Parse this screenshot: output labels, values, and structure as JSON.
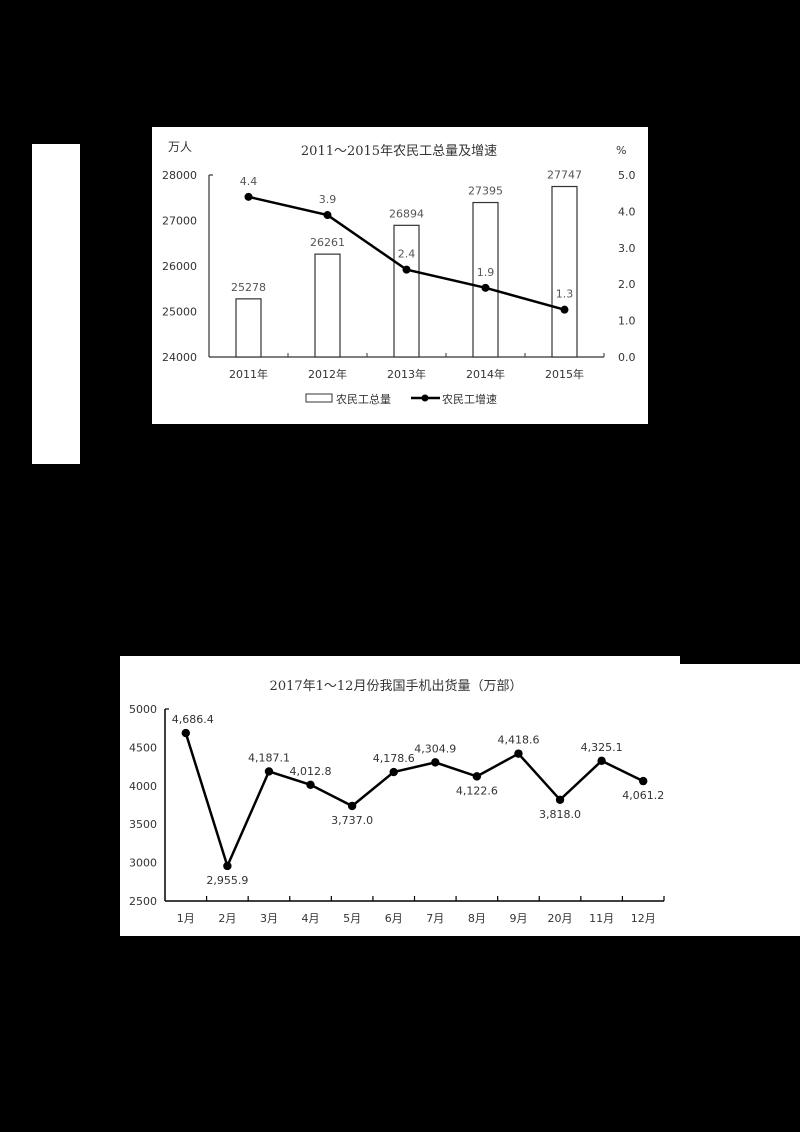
{
  "chart_data": [
    {
      "type": "bar+line",
      "title": "2011～2015年农民工总量及增速",
      "y_left_unit": "万人",
      "y_right_unit": "%",
      "categories": [
        "2011年",
        "2012年",
        "2013年",
        "2014年",
        "2015年"
      ],
      "series": [
        {
          "name": "农民工总量",
          "type": "bar",
          "axis": "left",
          "values": [
            25278,
            26261,
            26894,
            27395,
            27747
          ]
        },
        {
          "name": "农民工增速",
          "type": "line",
          "axis": "right",
          "values": [
            4.4,
            3.9,
            2.4,
            1.9,
            1.3
          ]
        }
      ],
      "y_left_ticks": [
        "28000",
        "27000",
        "26000",
        "25000",
        "24000"
      ],
      "y_left_range": [
        24000,
        28000
      ],
      "y_right_ticks": [
        "5.0",
        "4.0",
        "3.0",
        "2.0",
        "1.0",
        "0.0"
      ],
      "y_right_range": [
        0,
        5
      ],
      "legend": [
        "农民工总量",
        "农民工增速"
      ],
      "legend_position": "bottom",
      "grid": false
    },
    {
      "type": "line",
      "title": "2017年1～12月份我国手机出货量（万部）",
      "categories": [
        "1月",
        "2月",
        "3月",
        "4月",
        "5月",
        "6月",
        "7月",
        "8月",
        "9月",
        "20月",
        "11月",
        "12月"
      ],
      "series": [
        {
          "name": "手机出货量",
          "values": [
            4686.4,
            2955.9,
            4187.1,
            4012.8,
            3737.0,
            4178.6,
            4304.9,
            4122.6,
            4418.6,
            3818.0,
            4325.1,
            4061.2
          ]
        }
      ],
      "value_labels": [
        "4,686.4",
        "2,955.9",
        "4,187.1",
        "4,012.8",
        "3,737.0",
        "4,178.6",
        "4,304.9",
        "4,122.6",
        "4,418.6",
        "3,818.0",
        "4,325.1",
        "4,061.2"
      ],
      "label_positions": [
        "above",
        "below",
        "above",
        "above",
        "below",
        "above",
        "above",
        "below",
        "above",
        "below",
        "above",
        "below"
      ],
      "y_ticks": [
        "5000",
        "4500",
        "4000",
        "3500",
        "3000",
        "2500"
      ],
      "y_range": [
        2500,
        5000
      ],
      "grid": false
    }
  ]
}
